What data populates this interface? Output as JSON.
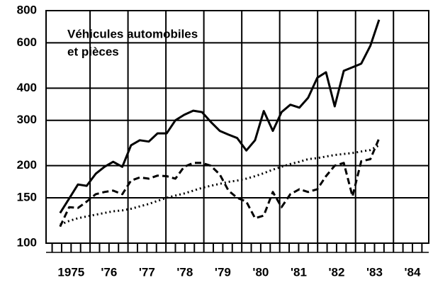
{
  "chart_data": {
    "type": "line",
    "title": [
      "Véhicules automobiles",
      "et pièces"
    ],
    "log_y": true,
    "ylim": [
      100,
      800
    ],
    "yticks": [
      100,
      150,
      200,
      300,
      400,
      600,
      800
    ],
    "xlim": [
      1974.84,
      1984.93
    ],
    "xticks": [
      {
        "value": 1975.5,
        "label": "1975"
      },
      {
        "value": 1976.5,
        "label": "'76"
      },
      {
        "value": 1977.5,
        "label": "'77"
      },
      {
        "value": 1978.5,
        "label": "'78"
      },
      {
        "value": 1979.5,
        "label": "'79"
      },
      {
        "value": 1980.5,
        "label": "'80"
      },
      {
        "value": 1981.5,
        "label": "'81"
      },
      {
        "value": 1982.5,
        "label": "'82"
      },
      {
        "value": 1983.5,
        "label": "'83"
      },
      {
        "value": 1984.5,
        "label": "'84"
      }
    ],
    "xgrid": [
      1976,
      1977,
      1978,
      1979,
      1980,
      1981,
      1982,
      1983,
      1984
    ],
    "xminorticks": [
      1975,
      1975.25,
      1975.5,
      1975.75,
      1976,
      1976.25,
      1976.5,
      1976.75,
      1977,
      1977.25,
      1977.5,
      1977.75,
      1978,
      1978.25,
      1978.5,
      1978.75,
      1979,
      1979.25,
      1979.5,
      1979.75,
      1980,
      1980.25,
      1980.5,
      1980.75,
      1981,
      1981.25,
      1981.5,
      1981.75,
      1982,
      1982.25,
      1982.5,
      1982.75,
      1983,
      1983.25,
      1983.5,
      1983.75,
      1984,
      1984.25,
      1984.5,
      1984.75
    ],
    "grid": true,
    "x": [
      1975.21,
      1975.45,
      1975.68,
      1975.91,
      1976.15,
      1976.38,
      1976.61,
      1976.85,
      1977.08,
      1977.31,
      1977.55,
      1977.78,
      1978.02,
      1978.25,
      1978.48,
      1978.72,
      1978.95,
      1979.18,
      1979.42,
      1979.65,
      1979.88,
      1980.12,
      1980.35,
      1980.58,
      1980.82,
      1981.05,
      1981.28,
      1981.52,
      1981.75,
      1981.99,
      1982.22,
      1982.45,
      1982.69,
      1982.92,
      1983.15,
      1983.39,
      1983.62
    ],
    "series": [
      {
        "color": "#000000",
        "dash": "solid",
        "values": [
          131,
          149,
          169,
          167,
          186,
          198,
          207,
          198,
          240,
          251,
          248,
          267,
          267,
          300,
          315,
          327,
          323,
          296,
          273,
          264,
          256,
          229,
          251,
          326,
          273,
          323,
          345,
          336,
          367,
          439,
          461,
          340,
          467,
          482,
          498,
          584,
          737
        ]
      },
      {
        "color": "#000000",
        "dash": "dashed",
        "values": [
          116,
          138,
          137,
          145,
          155,
          158,
          160,
          155,
          175,
          180,
          178,
          183,
          182,
          178,
          198,
          205,
          205,
          200,
          185,
          160,
          150,
          145,
          125,
          128,
          158,
          138,
          155,
          162,
          158,
          162,
          182,
          200,
          205,
          152,
          208,
          212,
          255
        ]
      },
      {
        "color": "#000000",
        "dash": "dotted",
        "values": [
          118,
          122,
          125,
          127,
          129,
          131,
          133,
          134,
          136,
          139,
          142,
          146,
          150,
          153,
          156,
          160,
          164,
          167,
          170,
          173,
          175,
          178,
          182,
          187,
          193,
          198,
          203,
          207,
          212,
          214,
          217,
          220,
          222,
          224,
          227,
          230,
          240
        ]
      }
    ]
  }
}
